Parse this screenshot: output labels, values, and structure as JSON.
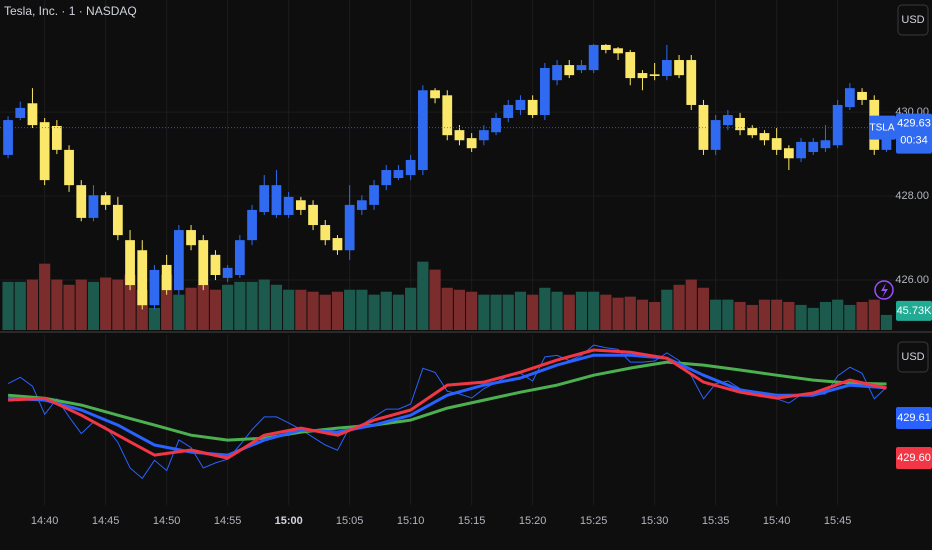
{
  "chart_data": {
    "type": "candlestick",
    "title": "Tesla, Inc. · 1 · NASDAQ",
    "symbol": "TSLA",
    "currency": "USD",
    "countdown": "00:34",
    "up_color": "#2f6af0",
    "down_color": "#fbe86a",
    "grid": true,
    "xlim": [
      -0.66,
      72.7
    ],
    "xticks": [
      {
        "value": 3,
        "label": "14:40"
      },
      {
        "value": 8,
        "label": "14:45"
      },
      {
        "value": 13,
        "label": "14:50"
      },
      {
        "value": 18,
        "label": "14:55"
      },
      {
        "value": 23,
        "label": "15:00"
      },
      {
        "value": 28,
        "label": "15:05"
      },
      {
        "value": 33,
        "label": "15:10"
      },
      {
        "value": 38,
        "label": "15:15"
      },
      {
        "value": 43,
        "label": "15:20"
      },
      {
        "value": 48,
        "label": "15:25"
      },
      {
        "value": 53,
        "label": "15:30"
      },
      {
        "value": 58,
        "label": "15:35"
      },
      {
        "value": 63,
        "label": "15:40"
      },
      {
        "value": 68,
        "label": "15:45"
      }
    ],
    "ylim": [
      424.81,
      432.67
    ],
    "yticks": [
      {
        "value": 426,
        "label": "426.00"
      },
      {
        "value": 428,
        "label": "428.00"
      },
      {
        "value": 430,
        "label": "430.00"
      }
    ],
    "open": [
      428.98,
      429.86,
      430.21,
      429.76,
      429.67,
      429.1,
      428.26,
      427.48,
      428.02,
      427.79,
      426.95,
      426.71,
      425.4,
      426.36,
      425.76,
      427.19,
      426.95,
      426.6,
      426.05,
      426.12,
      426.95,
      427.62,
      427.55,
      427.55,
      427.9,
      427.79,
      427.31,
      427.0,
      426.71,
      427.67,
      427.79,
      428.26,
      428.43,
      428.5,
      428.62,
      430.52,
      430.4,
      429.57,
      429.38,
      429.33,
      429.52,
      429.86,
      430.05,
      430.29,
      429.93,
      430.76,
      431.12,
      431.0,
      431.0,
      431.6,
      431.52,
      431.43,
      430.93,
      430.9,
      430.86,
      431.24,
      431.24,
      430.17,
      429.1,
      429.69,
      429.86,
      429.62,
      429.5,
      429.38,
      429.14,
      428.9,
      429.05,
      429.14,
      429.21,
      430.12,
      430.48,
      430.29,
      429.1
    ],
    "high": [
      429.9,
      430.25,
      430.57,
      429.86,
      429.81,
      429.21,
      428.38,
      428.26,
      428.1,
      427.98,
      427.19,
      426.95,
      426.36,
      426.6,
      427.31,
      427.31,
      427.07,
      426.71,
      426.36,
      427.07,
      427.79,
      428.5,
      428.62,
      428.1,
      427.98,
      427.9,
      427.43,
      427.07,
      428.26,
      428.02,
      428.38,
      428.74,
      428.74,
      428.98,
      430.64,
      430.57,
      430.52,
      429.69,
      429.5,
      429.69,
      429.98,
      430.29,
      430.4,
      430.4,
      431.17,
      431.24,
      431.24,
      431.24,
      431.62,
      431.62,
      431.55,
      431.48,
      431.0,
      431.17,
      431.6,
      431.36,
      431.36,
      430.29,
      429.93,
      430.05,
      429.98,
      429.69,
      429.57,
      429.62,
      429.21,
      429.38,
      429.38,
      429.69,
      430.29,
      430.69,
      430.57,
      430.4,
      429.69
    ],
    "low": [
      428.9,
      429.81,
      429.62,
      428.26,
      429.0,
      428.1,
      427.4,
      427.4,
      427.67,
      426.95,
      425.76,
      425.3,
      425.3,
      425.65,
      425.65,
      426.71,
      425.76,
      426.0,
      425.95,
      426.05,
      426.83,
      427.55,
      427.48,
      427.48,
      427.55,
      427.19,
      426.83,
      426.6,
      426.48,
      427.55,
      427.67,
      428.14,
      428.38,
      428.38,
      428.5,
      430.21,
      429.33,
      429.21,
      429.05,
      429.21,
      429.45,
      429.76,
      429.93,
      429.86,
      429.81,
      430.64,
      430.81,
      430.93,
      430.93,
      431.4,
      431.24,
      430.64,
      430.52,
      430.76,
      430.76,
      430.81,
      430.05,
      428.98,
      428.98,
      429.57,
      429.45,
      429.38,
      429.21,
      428.98,
      428.62,
      428.81,
      428.98,
      429.05,
      429.14,
      430.05,
      430.17,
      428.98,
      429.05
    ],
    "close": [
      429.81,
      430.1,
      429.69,
      428.38,
      429.1,
      428.26,
      427.48,
      428.02,
      427.79,
      427.07,
      425.88,
      425.4,
      426.24,
      425.76,
      427.19,
      426.83,
      425.88,
      426.12,
      426.29,
      426.95,
      427.67,
      428.26,
      428.26,
      427.98,
      427.67,
      427.31,
      426.95,
      426.71,
      427.79,
      427.9,
      428.26,
      428.62,
      428.62,
      428.86,
      430.52,
      430.33,
      429.45,
      429.33,
      429.14,
      429.57,
      429.86,
      430.17,
      430.29,
      429.93,
      431.05,
      431.12,
      430.88,
      431.12,
      431.6,
      431.48,
      431.4,
      430.81,
      430.81,
      430.86,
      431.24,
      430.88,
      430.17,
      429.1,
      429.81,
      429.93,
      429.57,
      429.45,
      429.33,
      429.1,
      428.9,
      429.29,
      429.29,
      429.33,
      430.17,
      430.57,
      430.29,
      429.1,
      429.63
    ],
    "volume": {
      "up_color": "#1d5a4e",
      "down_color": "#7b2c2c",
      "label_color": "#22ab94",
      "ylim": [
        0,
        1000
      ],
      "values": [
        146,
        146,
        153,
        201,
        153,
        137,
        153,
        146,
        159,
        153,
        168,
        122,
        67,
        168,
        107,
        128,
        137,
        122,
        137,
        146,
        146,
        153,
        137,
        122,
        122,
        116,
        107,
        116,
        122,
        122,
        107,
        116,
        107,
        128,
        207,
        183,
        128,
        122,
        116,
        107,
        107,
        107,
        116,
        107,
        128,
        116,
        107,
        116,
        116,
        107,
        98,
        101,
        92,
        85,
        122,
        137,
        153,
        128,
        92,
        92,
        85,
        76,
        92,
        92,
        85,
        76,
        67,
        85,
        92,
        76,
        85,
        92,
        45.73
      ],
      "value_labels": [
        null,
        null,
        null,
        null,
        null,
        null,
        null,
        null,
        null,
        null,
        null,
        null,
        null,
        null,
        null,
        null,
        null,
        null,
        null,
        null,
        null,
        null,
        null,
        null,
        null,
        null,
        null,
        null,
        null,
        null,
        null,
        null,
        null,
        null,
        null,
        null,
        null,
        null,
        null,
        null,
        null,
        null,
        null,
        null,
        null,
        null,
        null,
        null,
        null,
        null,
        null,
        null,
        null,
        null,
        null,
        null,
        null,
        null,
        null,
        null,
        null,
        null,
        null,
        null,
        null,
        null,
        null,
        null,
        null,
        null,
        null,
        null,
        "45.73K"
      ]
    },
    "indicator": {
      "currency": "USD",
      "ylim": [
        424.16,
        432.07
      ],
      "price_line_color": "#2962ff",
      "x": [
        0,
        3,
        6,
        9,
        12,
        15,
        18,
        21,
        24,
        27,
        30,
        33,
        36,
        39,
        42,
        45,
        48,
        51,
        54,
        57,
        60,
        63,
        66,
        69,
        72
      ],
      "series": [
        {
          "color": "#4caf50",
          "values": [
            429.27,
            429.13,
            428.81,
            428.34,
            427.88,
            427.41,
            427.18,
            427.27,
            427.55,
            427.74,
            427.88,
            428.11,
            428.67,
            429.04,
            429.41,
            429.74,
            430.2,
            430.53,
            430.81,
            430.67,
            430.44,
            430.2,
            429.97,
            429.83,
            429.79
          ]
        },
        {
          "color": "#2962ff",
          "values": [
            429.13,
            429.04,
            428.58,
            427.88,
            426.95,
            426.62,
            426.48,
            427.18,
            427.65,
            427.55,
            427.88,
            428.34,
            429.27,
            429.74,
            430.07,
            430.67,
            431.13,
            431.13,
            430.99,
            430.2,
            429.51,
            429.27,
            429.27,
            429.74,
            429.61
          ]
        },
        {
          "color": "#f23645",
          "values": [
            429.04,
            429.13,
            428.34,
            427.41,
            426.48,
            426.72,
            426.34,
            427.41,
            427.74,
            427.41,
            428.11,
            428.58,
            429.74,
            429.88,
            430.34,
            430.9,
            431.37,
            431.27,
            430.99,
            429.88,
            429.41,
            429.13,
            429.37,
            429.97,
            429.6
          ],
          "value_labels": [
            null,
            null,
            null,
            null,
            null,
            null,
            null,
            null,
            null,
            null,
            null,
            null,
            null,
            null,
            null,
            null,
            null,
            null,
            null,
            null,
            null,
            null,
            null,
            null,
            "429.60"
          ]
        }
      ]
    }
  }
}
